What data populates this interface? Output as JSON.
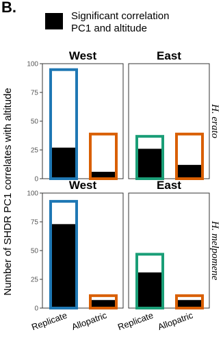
{
  "figure": {
    "panel_letter": "B.",
    "legend": {
      "line1": "Significant correlation",
      "line2": "PC1 and altitude",
      "swatch_color": "#000000"
    }
  },
  "chart_data": {
    "type": "bar",
    "ylabel": "Number of SHDR PC1 correlates with altitude",
    "ylim": [
      0,
      100
    ],
    "yticks": [
      0,
      25,
      50,
      75,
      100
    ],
    "categories": [
      "Replicate",
      "Allopatric"
    ],
    "colors": {
      "Replicate_West": "#1f78b4",
      "Replicate_East": "#1a9e77",
      "Allopatric": "#d95f02",
      "significant": "#000000"
    },
    "rows": [
      {
        "species": "H. erato",
        "facets": [
          {
            "title": "West",
            "bars": [
              {
                "category": "Replicate",
                "total": 96,
                "significant": 27
              },
              {
                "category": "Allopatric",
                "total": 40,
                "significant": 6
              }
            ]
          },
          {
            "title": "East",
            "bars": [
              {
                "category": "Replicate",
                "total": 38,
                "significant": 26
              },
              {
                "category": "Allopatric",
                "total": 40,
                "significant": 12
              }
            ]
          }
        ]
      },
      {
        "species": "H. melpomene",
        "facets": [
          {
            "title": "West",
            "bars": [
              {
                "category": "Replicate",
                "total": 94,
                "significant": 73
              },
              {
                "category": "Allopatric",
                "total": 12,
                "significant": 7
              }
            ]
          },
          {
            "title": "East",
            "bars": [
              {
                "category": "Replicate",
                "total": 48,
                "significant": 31
              },
              {
                "category": "Allopatric",
                "total": 12,
                "significant": 7
              }
            ]
          }
        ]
      }
    ]
  }
}
